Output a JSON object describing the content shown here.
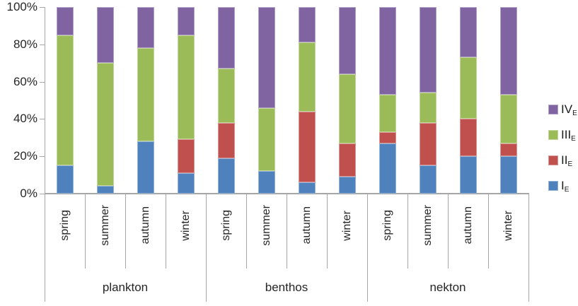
{
  "chart_data": {
    "type": "bar",
    "variant": "100%-stacked-column",
    "title": "",
    "groups": [
      "plankton",
      "benthos",
      "nekton"
    ],
    "seasons": [
      "spring",
      "summer",
      "autumn",
      "winter"
    ],
    "categories": [
      "plankton-spring",
      "plankton-summer",
      "plankton-autumn",
      "plankton-winter",
      "benthos-spring",
      "benthos-summer",
      "benthos-autumn",
      "benthos-winter",
      "nekton-spring",
      "nekton-summer",
      "nekton-autumn",
      "nekton-winter"
    ],
    "series": [
      {
        "name": "I_E",
        "label": "I",
        "subscript": "E",
        "color": "#4F81BD",
        "border_color": "#95B3D7",
        "values": [
          15,
          4,
          28,
          11,
          19,
          12,
          6,
          9,
          27,
          15,
          20,
          20
        ]
      },
      {
        "name": "II_E",
        "label": "II",
        "subscript": "E",
        "color": "#C0504D",
        "border_color": "#D99694",
        "values": [
          0,
          0,
          0,
          18,
          19,
          0,
          38,
          18,
          6,
          23,
          20,
          7
        ]
      },
      {
        "name": "III_E",
        "label": "III",
        "subscript": "E",
        "color": "#9BBB59",
        "border_color": "#C3D69B",
        "values": [
          70,
          66,
          50,
          56,
          29,
          34,
          37,
          37,
          20,
          16,
          33,
          26
        ]
      },
      {
        "name": "IV_E",
        "label": "IV",
        "subscript": "E",
        "color": "#8064A2",
        "border_color": "#B3A2C7",
        "values": [
          15,
          30,
          22,
          15,
          33,
          54,
          19,
          36,
          47,
          46,
          27,
          47
        ]
      }
    ],
    "y_axis": {
      "tick_labels": [
        "0%",
        "20%",
        "40%",
        "60%",
        "80%",
        "100%"
      ],
      "min": 0,
      "max": 100,
      "unit": "%"
    },
    "legend": {
      "position": "right",
      "order_top_to_bottom": [
        "IV_E",
        "III_E",
        "II_E",
        "I_E"
      ]
    },
    "grid": false,
    "axis_color": "#A6A6A6",
    "text_color": "#262626",
    "background_color": "#FFFFFF"
  }
}
